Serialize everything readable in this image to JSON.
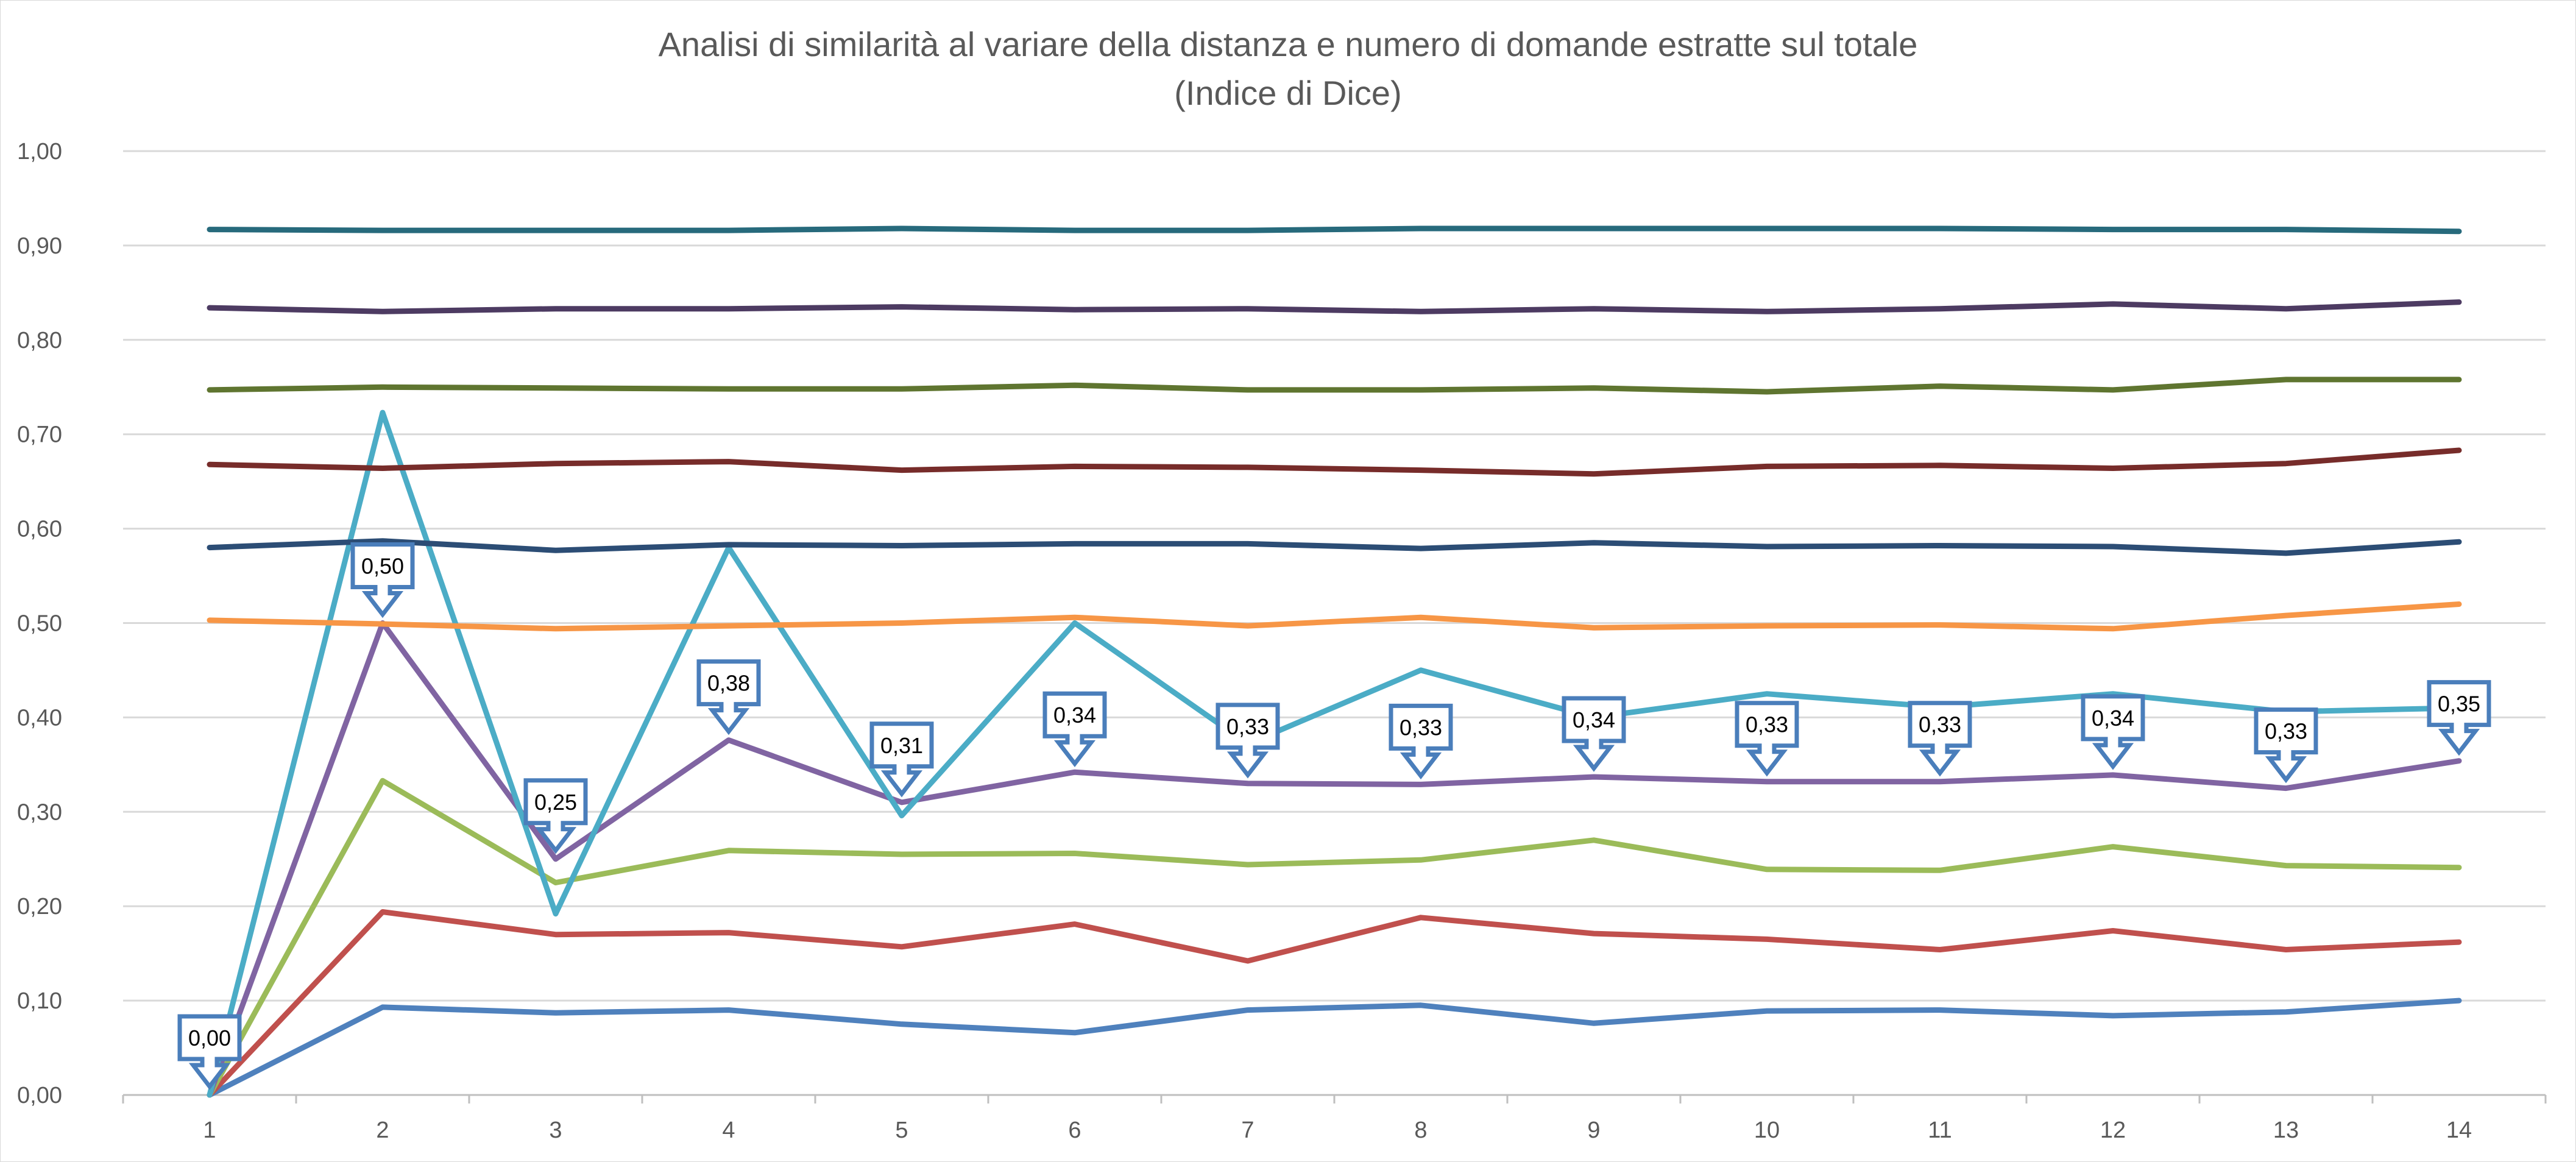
{
  "chart_data": {
    "type": "line",
    "title": "Analisi di similarità al variare della distanza e numero di domande estratte sul totale",
    "subtitle": "(Indice di Dice)",
    "xlabel": "",
    "ylabel": "",
    "categories": [
      "1",
      "2",
      "3",
      "4",
      "5",
      "6",
      "7",
      "8",
      "9",
      "10",
      "11",
      "12",
      "13",
      "14"
    ],
    "ylim": [
      0,
      1
    ],
    "yticks": [
      "0,00",
      "0,10",
      "0,20",
      "0,30",
      "0,40",
      "0,50",
      "0,60",
      "0,70",
      "0,80",
      "0,90",
      "1,00"
    ],
    "grid": true,
    "legend": "none",
    "series": [
      {
        "color": "#4f81bd",
        "values": [
          0.0,
          0.093,
          0.087,
          0.09,
          0.075,
          0.066,
          0.09,
          0.095,
          0.076,
          0.089,
          0.09,
          0.084,
          0.088,
          0.1
        ]
      },
      {
        "color": "#c0504d",
        "values": [
          0.0,
          0.194,
          0.17,
          0.172,
          0.157,
          0.181,
          0.142,
          0.188,
          0.171,
          0.165,
          0.154,
          0.174,
          0.154,
          0.162
        ]
      },
      {
        "color": "#9bbb59",
        "values": [
          0.0,
          0.333,
          0.225,
          0.259,
          0.255,
          0.256,
          0.244,
          0.249,
          0.27,
          0.239,
          0.238,
          0.263,
          0.243,
          0.241
        ]
      },
      {
        "color": "#8064a2",
        "values": [
          0.0,
          0.5,
          0.25,
          0.376,
          0.31,
          0.342,
          0.33,
          0.329,
          0.337,
          0.332,
          0.332,
          0.339,
          0.325,
          0.354
        ],
        "data_labels": [
          "0,00",
          "0,50",
          "0,25",
          "0,38",
          "0,31",
          "0,34",
          "0,33",
          "0,33",
          "0,34",
          "0,33",
          "0,33",
          "0,34",
          "0,33",
          "0,35"
        ]
      },
      {
        "color": "#4bacc6",
        "values": [
          0.0,
          0.723,
          0.192,
          0.58,
          0.296,
          0.5,
          0.372,
          0.45,
          0.4,
          0.425,
          0.411,
          0.425,
          0.406,
          0.41
        ]
      },
      {
        "color": "#f79646",
        "values": [
          0.503,
          0.499,
          0.494,
          0.497,
          0.5,
          0.506,
          0.497,
          0.506,
          0.495,
          0.497,
          0.498,
          0.494,
          0.508,
          0.52
        ]
      },
      {
        "color": "#2c4d75",
        "values": [
          0.58,
          0.587,
          0.577,
          0.583,
          0.582,
          0.584,
          0.584,
          0.579,
          0.585,
          0.581,
          0.582,
          0.581,
          0.574,
          0.586
        ]
      },
      {
        "color": "#772c2a",
        "values": [
          0.668,
          0.664,
          0.669,
          0.671,
          0.662,
          0.666,
          0.665,
          0.662,
          0.658,
          0.666,
          0.667,
          0.664,
          0.669,
          0.683
        ]
      },
      {
        "color": "#5f7530",
        "values": [
          0.747,
          0.75,
          0.749,
          0.748,
          0.748,
          0.752,
          0.747,
          0.747,
          0.749,
          0.745,
          0.751,
          0.747,
          0.758,
          0.758
        ]
      },
      {
        "color": "#4d3b62",
        "values": [
          0.834,
          0.83,
          0.833,
          0.833,
          0.835,
          0.832,
          0.833,
          0.83,
          0.833,
          0.83,
          0.833,
          0.838,
          0.833,
          0.84
        ]
      },
      {
        "color": "#276a7c",
        "values": [
          0.917,
          0.916,
          0.916,
          0.916,
          0.918,
          0.916,
          0.916,
          0.918,
          0.918,
          0.918,
          0.918,
          0.917,
          0.917,
          0.915
        ]
      }
    ]
  }
}
